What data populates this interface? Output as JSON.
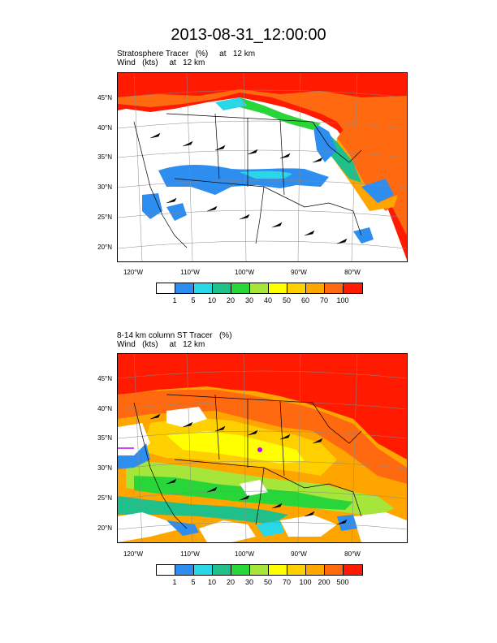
{
  "page": {
    "title": "2013-08-31_12:00:00"
  },
  "panels": [
    {
      "line1": "Stratosphere Tracer   (%)     at   12 km",
      "line2": "Wind   (kts)     at   12 km",
      "lat_labels": [
        "45°N",
        "40°N",
        "35°N",
        "30°N",
        "25°N",
        "20°N"
      ],
      "lon_labels": [
        "120°W",
        "110°W",
        "100°W",
        "90°W",
        "80°W"
      ],
      "colorbar": {
        "colors": [
          "#ffffff",
          "#2e8ef0",
          "#2ad7e6",
          "#1fc08a",
          "#29d63a",
          "#a6e63b",
          "#ffff00",
          "#ffd000",
          "#ffa500",
          "#ff6a10",
          "#ff1a00"
        ],
        "labels": [
          "1",
          "5",
          "10",
          "20",
          "30",
          "40",
          "50",
          "60",
          "70",
          "100"
        ]
      }
    },
    {
      "line1": "8-14 km column ST Tracer   (%)",
      "line2": "Wind   (kts)     at   12 km",
      "lat_labels": [
        "45°N",
        "40°N",
        "35°N",
        "30°N",
        "25°N",
        "20°N"
      ],
      "lon_labels": [
        "120°W",
        "110°W",
        "100°W",
        "90°W",
        "80°W"
      ],
      "colorbar": {
        "colors": [
          "#ffffff",
          "#2e8ef0",
          "#2ad7e6",
          "#1fc08a",
          "#29d63a",
          "#a6e63b",
          "#ffff00",
          "#ffd000",
          "#ffa500",
          "#ff6a10",
          "#ff1a00"
        ],
        "labels": [
          "1",
          "5",
          "10",
          "20",
          "30",
          "50",
          "70",
          "100",
          "200",
          "500"
        ]
      }
    }
  ]
}
